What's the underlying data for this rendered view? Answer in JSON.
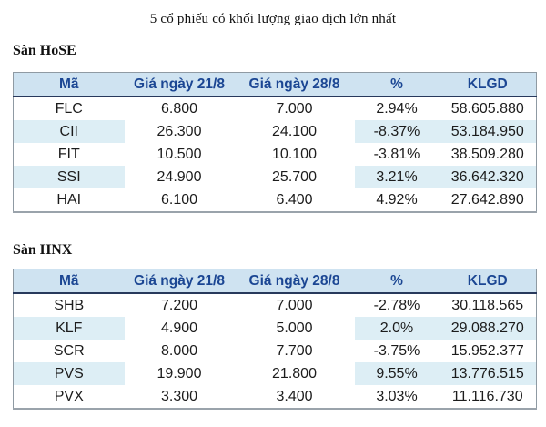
{
  "page": {
    "title": "5 cổ phiếu có khối lượng giao dịch lớn nhất"
  },
  "colors": {
    "positive_green": "#2f9e50",
    "negative_red": "#cc3333",
    "header_text_blue": "#1b4693",
    "header_bg_blue": "#cfe3f1",
    "row_shade_blue": "#ddeef5"
  },
  "chart_data": [
    {
      "type": "table",
      "title": "Sàn HoSE",
      "columns": [
        "Mã",
        "Giá ngày 21/8",
        "Giá ngày 28/8",
        "%",
        "KLGD"
      ],
      "rows": [
        [
          "FLC",
          "6.800",
          "7.000",
          "2.94%",
          "58.605.880"
        ],
        [
          "CII",
          "26.300",
          "24.100",
          "-8.37%",
          "53.184.950"
        ],
        [
          "FIT",
          "10.500",
          "10.100",
          "-3.81%",
          "38.509.280"
        ],
        [
          "SSI",
          "24.900",
          "25.700",
          "3.21%",
          "36.642.320"
        ],
        [
          "HAI",
          "6.100",
          "6.400",
          "4.92%",
          "27.642.890"
        ]
      ],
      "pct_trend": [
        "up",
        "down",
        "down",
        "up",
        "up"
      ]
    },
    {
      "type": "table",
      "title": "Sàn HNX",
      "columns": [
        "Mã",
        "Giá ngày 21/8",
        "Giá ngày 28/8",
        "%",
        "KLGD"
      ],
      "rows": [
        [
          "SHB",
          "7.200",
          "7.000",
          "-2.78%",
          "30.118.565"
        ],
        [
          "KLF",
          "4.900",
          "5.000",
          "2.0%",
          "29.088.270"
        ],
        [
          "SCR",
          "8.000",
          "7.700",
          "-3.75%",
          "15.952.377"
        ],
        [
          "PVS",
          "19.900",
          "21.800",
          "9.55%",
          "13.776.515"
        ],
        [
          "PVX",
          "3.300",
          "3.400",
          "3.03%",
          "11.116.730"
        ]
      ],
      "pct_trend": [
        "down",
        "up",
        "down",
        "up",
        "up"
      ]
    }
  ]
}
